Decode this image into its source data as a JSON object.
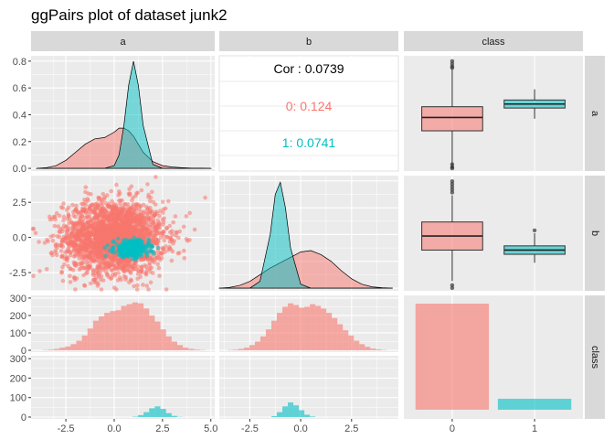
{
  "title": "ggPairs plot of dataset junk2",
  "colors": {
    "class0": "#F8766D",
    "class1": "#00BFC4",
    "panel_bg": "#EBEBEB",
    "strip_bg": "#D9D9D9",
    "grid": "#FFFFFF"
  },
  "chart_data": {
    "type": "pairs",
    "variables": [
      "a",
      "b",
      "class"
    ],
    "groups": [
      "0",
      "1"
    ],
    "axis_ticks": {
      "a": [
        "-2.5",
        "0.0",
        "2.5",
        "5.0"
      ],
      "b": [
        "-2.5",
        "0.0",
        "2.5"
      ],
      "class": [
        "0",
        "1"
      ]
    },
    "row_ticks": {
      "density_a": [
        "0.0",
        "0.2",
        "0.4",
        "0.6",
        "0.8"
      ],
      "b": [
        "-2.5",
        "0.0",
        "2.5"
      ],
      "count": [
        "0",
        "100",
        "200",
        "300"
      ]
    },
    "correlation": {
      "overall_label": "Cor : 0.0739",
      "group_labels": [
        "0: 0.124",
        "1: 0.0741"
      ]
    },
    "density_a": {
      "xlim": [
        -4.3,
        5.2
      ],
      "ylim": [
        -0.02,
        0.84
      ],
      "x": [
        -4.0,
        -3.5,
        -3.0,
        -2.5,
        -2.0,
        -1.5,
        -1.0,
        -0.5,
        0.0,
        0.25,
        0.5,
        0.75,
        1.0,
        1.25,
        1.5,
        2.0,
        2.5,
        3.0,
        3.5,
        4.0,
        4.5,
        5.0
      ],
      "class0": [
        0.0,
        0.005,
        0.02,
        0.06,
        0.12,
        0.18,
        0.22,
        0.23,
        0.27,
        0.3,
        0.3,
        0.28,
        0.24,
        0.18,
        0.12,
        0.05,
        0.02,
        0.01,
        0.005,
        0.002,
        0.001,
        0.0
      ],
      "class1": [
        0,
        0,
        0,
        0,
        0,
        0,
        0,
        0.0,
        0.02,
        0.1,
        0.32,
        0.62,
        0.8,
        0.62,
        0.32,
        0.03,
        0.0,
        0,
        0,
        0,
        0,
        0
      ]
    },
    "density_b": {
      "xlim": [
        -4.0,
        4.8
      ],
      "ylim": [
        -0.02,
        0.84
      ],
      "x": [
        -4.0,
        -3.5,
        -3.0,
        -2.5,
        -2.0,
        -1.5,
        -1.25,
        -1.0,
        -0.75,
        -0.5,
        0.0,
        0.5,
        1.0,
        1.5,
        2.0,
        2.5,
        3.0,
        3.5,
        4.0,
        4.5
      ],
      "class0": [
        0.0,
        0.005,
        0.02,
        0.05,
        0.1,
        0.15,
        0.17,
        0.19,
        0.21,
        0.23,
        0.27,
        0.28,
        0.25,
        0.2,
        0.13,
        0.07,
        0.03,
        0.01,
        0.003,
        0.0
      ],
      "class1": [
        0,
        0,
        0,
        0.0,
        0.05,
        0.4,
        0.7,
        0.79,
        0.6,
        0.3,
        0.03,
        0.0,
        0,
        0,
        0,
        0,
        0,
        0,
        0,
        0
      ]
    },
    "box_a": {
      "ylim": [
        -0.02,
        0.84
      ],
      "class0": {
        "min": 0.0,
        "q1": 0.28,
        "median": 0.38,
        "q3": 0.46,
        "max": 0.74,
        "outliers": [
          0.8,
          0.78,
          0.76,
          0.75,
          0.03,
          0.01,
          0.0
        ]
      },
      "class1": {
        "min": 0.37,
        "q1": 0.45,
        "median": 0.48,
        "q3": 0.51,
        "max": 0.59,
        "outliers": []
      }
    },
    "box_b": {
      "ylim": [
        -3.8,
        4.4
      ],
      "class0": {
        "min": -3.1,
        "q1": -0.9,
        "median": 0.1,
        "q3": 1.1,
        "max": 3.0,
        "outliers": [
          4.0,
          3.8,
          3.6,
          3.4,
          3.2,
          -3.4,
          -3.6
        ]
      },
      "class1": {
        "min": -1.8,
        "q1": -1.2,
        "median": -0.9,
        "q3": -0.6,
        "max": 0.3,
        "outliers": [
          0.5
        ]
      }
    },
    "hist_a": {
      "xlim": [
        -4.3,
        5.2
      ],
      "ylim": [
        0,
        310
      ],
      "bin_start": -3.7,
      "bin_width": 0.29,
      "class0": [
        2,
        4,
        8,
        15,
        22,
        35,
        55,
        85,
        125,
        170,
        195,
        215,
        225,
        230,
        255,
        265,
        275,
        270,
        240,
        200,
        165,
        120,
        80,
        50,
        30,
        15,
        8,
        4,
        2
      ],
      "class1": [
        0,
        0,
        0,
        0,
        0,
        0,
        0,
        0,
        0,
        0,
        0,
        0,
        0,
        0,
        0,
        0,
        2,
        10,
        25,
        45,
        55,
        42,
        20,
        6,
        1,
        0,
        0,
        0,
        0
      ]
    },
    "hist_b": {
      "xlim": [
        -4.0,
        4.8
      ],
      "ylim": [
        0,
        310
      ],
      "bin_start": -3.6,
      "bin_width": 0.27,
      "class0": [
        2,
        4,
        8,
        15,
        30,
        50,
        80,
        120,
        170,
        215,
        250,
        270,
        260,
        245,
        250,
        265,
        255,
        240,
        215,
        185,
        150,
        115,
        85,
        55,
        35,
        20,
        10,
        5,
        2
      ],
      "class1": [
        0,
        0,
        0,
        0,
        0,
        0,
        0,
        0,
        5,
        25,
        55,
        75,
        60,
        35,
        12,
        3,
        0,
        0,
        0,
        0,
        0,
        0,
        0,
        0,
        0,
        0,
        0,
        0,
        0
      ]
    },
    "bar_class": {
      "ylim": [
        0,
        310
      ],
      "counts": [
        290,
        30
      ]
    },
    "scatter": {
      "xlim": [
        -4.3,
        5.2
      ],
      "ylim": [
        -3.8,
        4.4
      ],
      "class0": {
        "center_x": 0.0,
        "center_y": 0.0,
        "sd_x": 1.3,
        "sd_y": 1.3,
        "n": 2400
      },
      "class1": {
        "center_x": 0.9,
        "center_y": -0.8,
        "sd_x": 0.45,
        "sd_y": 0.3,
        "n": 350
      }
    }
  }
}
